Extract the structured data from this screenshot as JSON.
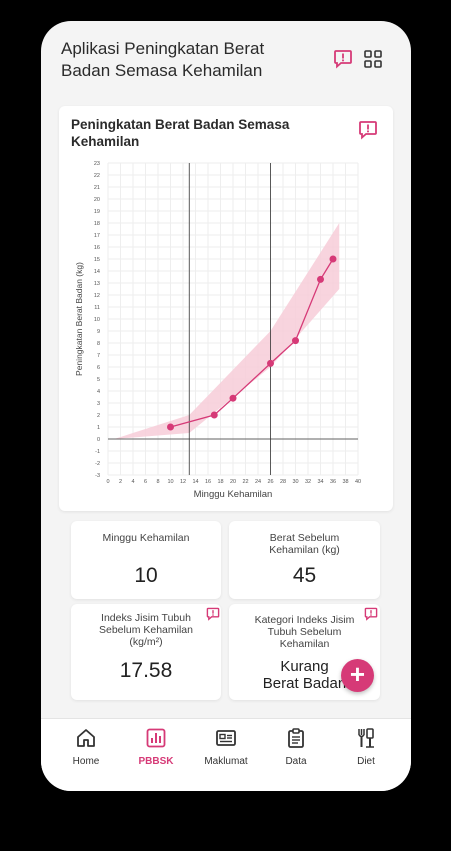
{
  "app": {
    "title": "Aplikasi Peningkatan Berat Badan Semasa Kehamilan",
    "accent_color": "#d63a77",
    "header_icons": [
      "report-icon",
      "grid-icon"
    ]
  },
  "chart": {
    "title": "Peningkatan Berat Badan Semasa Kehamilan",
    "info_icon": "report-icon"
  },
  "chart_data": {
    "type": "line",
    "title": "",
    "xlabel": "Minggu Kehamilan",
    "ylabel": "Peningkatan Berat Badan (kg)",
    "xlim": [
      0,
      40
    ],
    "ylim": [
      -3,
      23
    ],
    "xticks": [
      0,
      2,
      4,
      6,
      8,
      10,
      12,
      14,
      16,
      18,
      20,
      22,
      24,
      26,
      28,
      30,
      32,
      34,
      36,
      38,
      40
    ],
    "yticks": [
      -3,
      -2,
      -1,
      0,
      1,
      2,
      3,
      4,
      5,
      6,
      7,
      8,
      9,
      10,
      11,
      12,
      13,
      14,
      15,
      16,
      17,
      18,
      19,
      20,
      21,
      22,
      23
    ],
    "grid": true,
    "vertical_lines_x": [
      13,
      26
    ],
    "horizontal_line_y": 0,
    "band": {
      "x": [
        1,
        13,
        26,
        37
      ],
      "lower": [
        0,
        0.5,
        6,
        12.5
      ],
      "upper": [
        0,
        2,
        9,
        18
      ]
    },
    "series": [
      {
        "x": [
          10,
          17,
          20,
          26,
          30,
          34,
          36
        ],
        "values": [
          1,
          2,
          3.4,
          6.3,
          8.2,
          13.3,
          15
        ],
        "color": "#d63a77"
      }
    ],
    "band_color": "#f7cdd8"
  },
  "stats": {
    "week_title": "Minggu Kehamilan",
    "week_value": "10",
    "prepreg_weight_title": "Berat Sebelum Kehamilan (kg)",
    "prepreg_weight_value": "45",
    "bmi_title": "Indeks Jisim Tubuh Sebelum Kehamilan (kg/m²)",
    "bmi_value": "17.58",
    "bmi_category_title": "Kategori Indeks Jisim Tubuh Sebelum Kehamilan",
    "bmi_category_value": "Kurang Berat Badan"
  },
  "fab": {
    "label": "+"
  },
  "nav": {
    "items": [
      {
        "label": "Home",
        "icon": "home-icon"
      },
      {
        "label": "PBBSK",
        "icon": "bar-chart-icon",
        "active": true
      },
      {
        "label": "Maklumat",
        "icon": "info-card-icon"
      },
      {
        "label": "Data",
        "icon": "clipboard-icon"
      },
      {
        "label": "Diet",
        "icon": "utensils-icon"
      }
    ]
  }
}
